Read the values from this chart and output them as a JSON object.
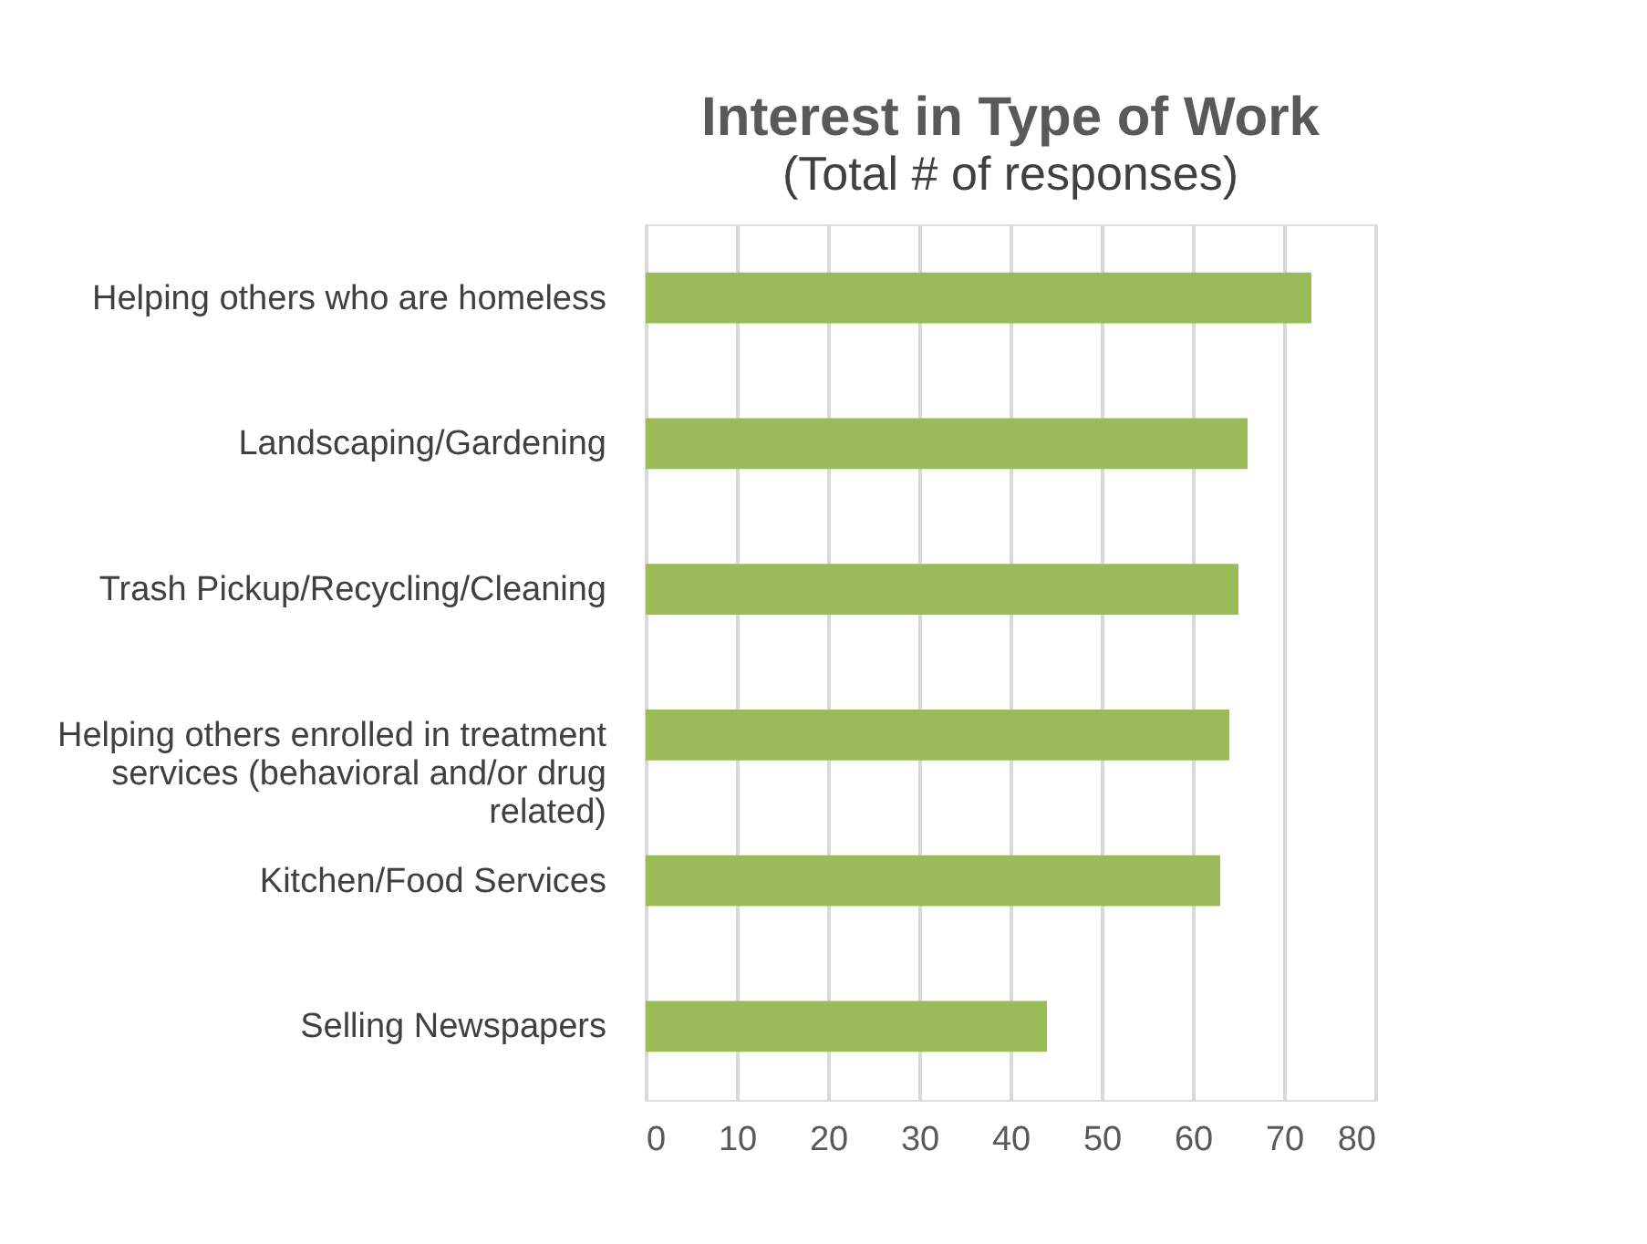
{
  "chart_data": {
    "type": "bar",
    "orientation": "horizontal",
    "title": "Interest in Type of Work",
    "subtitle": "(Total # of responses)",
    "categories": [
      "Helping others who are homeless",
      "Landscaping/Gardening",
      "Trash Pickup/Recycling/Cleaning",
      "Helping others enrolled in treatment services (behavioral and/or drug related)",
      "Kitchen/Food Services",
      "Selling Newspapers"
    ],
    "values": [
      73,
      66,
      65,
      64,
      63,
      44
    ],
    "color": "#9bbb59",
    "xlim": [
      0,
      80
    ],
    "xticks": [
      0,
      10,
      20,
      30,
      40,
      50,
      60,
      70,
      80
    ],
    "grid": "x"
  }
}
